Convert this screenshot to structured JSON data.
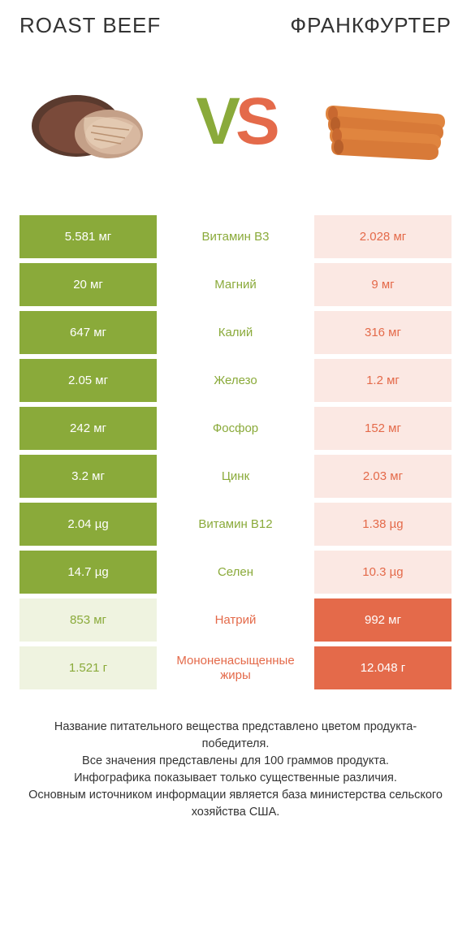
{
  "header": {
    "left_title": "ROAST BEEF",
    "right_title": "ФРАНКФУРТЕР"
  },
  "vs": {
    "v": "V",
    "s": "S",
    "v_color": "#8aaa3a",
    "s_color": "#e46a4a"
  },
  "colors": {
    "left_win_bg": "#8aaa3a",
    "left_win_fg": "#ffffff",
    "left_lose_bg": "#eff3e0",
    "left_lose_fg": "#8aaa3a",
    "right_win_bg": "#e46a4a",
    "right_win_fg": "#ffffff",
    "right_lose_bg": "#fbe8e3",
    "right_lose_fg": "#e46a4a",
    "center_bg": "#ffffff"
  },
  "rows": [
    {
      "left": "5.581 мг",
      "center": "Витамин B3",
      "right": "2.028 мг",
      "winner": "left"
    },
    {
      "left": "20 мг",
      "center": "Магний",
      "right": "9 мг",
      "winner": "left"
    },
    {
      "left": "647 мг",
      "center": "Калий",
      "right": "316 мг",
      "winner": "left"
    },
    {
      "left": "2.05 мг",
      "center": "Железо",
      "right": "1.2 мг",
      "winner": "left"
    },
    {
      "left": "242 мг",
      "center": "Фосфор",
      "right": "152 мг",
      "winner": "left"
    },
    {
      "left": "3.2 мг",
      "center": "Цинк",
      "right": "2.03 мг",
      "winner": "left"
    },
    {
      "left": "2.04 µg",
      "center": "Витамин B12",
      "right": "1.38 µg",
      "winner": "left"
    },
    {
      "left": "14.7 µg",
      "center": "Селен",
      "right": "10.3 µg",
      "winner": "left"
    },
    {
      "left": "853 мг",
      "center": "Натрий",
      "right": "992 мг",
      "winner": "right"
    },
    {
      "left": "1.521 г",
      "center": "Мононенасыщенные жиры",
      "right": "12.048 г",
      "winner": "right"
    }
  ],
  "footer": {
    "line1": "Название питательного вещества представлено цветом продукта-победителя.",
    "line2": "Все значения представлены для 100 граммов продукта.",
    "line3": "Инфографика показывает только существенные различия.",
    "line4": "Основным источником информации является база министерства сельского хозяйства США."
  }
}
